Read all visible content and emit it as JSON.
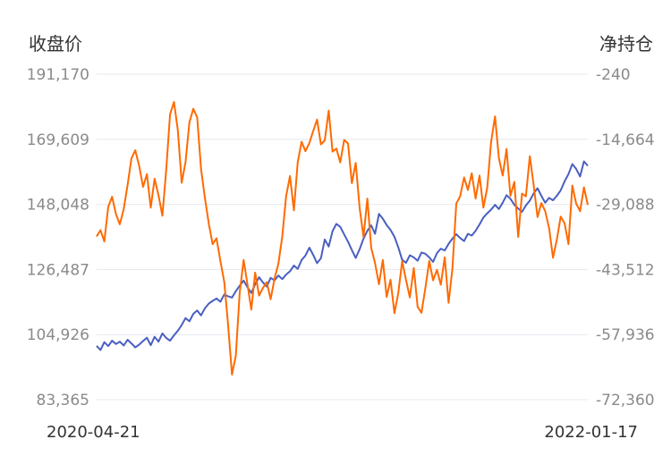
{
  "chart_data": {
    "type": "line",
    "left_axis_title": "收盘价",
    "right_axis_title": "净持仓",
    "left_ticks": [
      "191,170",
      "169,609",
      "148,048",
      "126,487",
      "104,926",
      "83,365"
    ],
    "right_ticks": [
      "-240",
      "-14,664",
      "-29,088",
      "-43,512",
      "-57,936",
      "-72,360"
    ],
    "left_range": [
      83365,
      191170
    ],
    "right_range": [
      -72360,
      -240
    ],
    "x_labels": [
      "2020-04-21",
      "2022-01-17"
    ],
    "grid": true,
    "colors": {
      "closing_price": "#4a5fc1",
      "net_position": "#ff6a00"
    },
    "series": [
      {
        "axis": "left",
        "color": "#4a5fc1",
        "values": [
          101200,
          99800,
          102400,
          101100,
          102900,
          101800,
          102600,
          101300,
          103200,
          102000,
          100700,
          101600,
          102800,
          103900,
          101400,
          104200,
          102600,
          105300,
          103800,
          102900,
          104700,
          106200,
          108100,
          110400,
          109300,
          111800,
          112900,
          111300,
          113600,
          115200,
          116100,
          116900,
          115800,
          118200,
          117600,
          117200,
          119300,
          121100,
          122800,
          120600,
          118700,
          121600,
          123900,
          122200,
          120800,
          123700,
          122900,
          124500,
          123300,
          124800,
          125900,
          127800,
          126700,
          129600,
          131100,
          133700,
          131300,
          128600,
          130200,
          136400,
          134100,
          139200,
          141600,
          140600,
          138100,
          135700,
          132900,
          130300,
          133200,
          136700,
          139300,
          141100,
          138300,
          144900,
          143300,
          141200,
          139600,
          137300,
          133800,
          129700,
          128700,
          131200,
          130500,
          129400,
          132100,
          131700,
          130500,
          129000,
          131900,
          133400,
          132800,
          135000,
          136700,
          138200,
          136900,
          135900,
          138300,
          137700,
          139300,
          141400,
          143700,
          145100,
          146300,
          147900,
          146500,
          148600,
          151100,
          149900,
          147900,
          146700,
          145600,
          147700,
          149300,
          151700,
          153400,
          150900,
          148600,
          150200,
          149400,
          150900,
          152700,
          155700,
          158100,
          161400,
          159800,
          157300,
          162300,
          160800
        ]
      },
      {
        "axis": "right",
        "color": "#ff6a00",
        "values": [
          -36200,
          -34800,
          -37300,
          -29600,
          -27400,
          -31200,
          -33500,
          -30100,
          -24800,
          -18900,
          -17100,
          -20600,
          -25200,
          -22400,
          -29800,
          -23400,
          -27100,
          -31600,
          -21400,
          -9100,
          -6400,
          -12700,
          -24300,
          -19700,
          -10900,
          -7900,
          -9800,
          -21200,
          -27600,
          -33400,
          -37900,
          -36600,
          -41600,
          -46300,
          -55900,
          -66800,
          -62600,
          -48700,
          -41400,
          -46800,
          -52400,
          -44200,
          -49300,
          -47600,
          -46300,
          -50100,
          -45500,
          -42200,
          -36200,
          -27300,
          -22800,
          -30400,
          -19700,
          -15200,
          -17300,
          -15500,
          -12800,
          -10300,
          -15800,
          -14900,
          -8300,
          -17400,
          -16700,
          -19800,
          -14800,
          -15600,
          -24400,
          -19900,
          -29900,
          -36300,
          -27800,
          -38700,
          -42100,
          -46800,
          -41400,
          -49600,
          -45800,
          -53200,
          -48700,
          -41700,
          -45800,
          -49700,
          -43200,
          -51800,
          -53100,
          -47700,
          -41600,
          -45900,
          -43600,
          -46900,
          -40800,
          -50900,
          -43300,
          -28900,
          -27300,
          -23100,
          -25900,
          -22200,
          -27800,
          -22700,
          -29800,
          -25400,
          -15300,
          -9600,
          -18800,
          -22700,
          -16800,
          -27200,
          -24100,
          -36300,
          -26700,
          -27300,
          -18400,
          -24800,
          -31900,
          -28800,
          -30600,
          -34400,
          -40900,
          -36900,
          -31800,
          -33300,
          -37900,
          -24900,
          -28900,
          -30600,
          -25300,
          -29200
        ]
      }
    ]
  }
}
